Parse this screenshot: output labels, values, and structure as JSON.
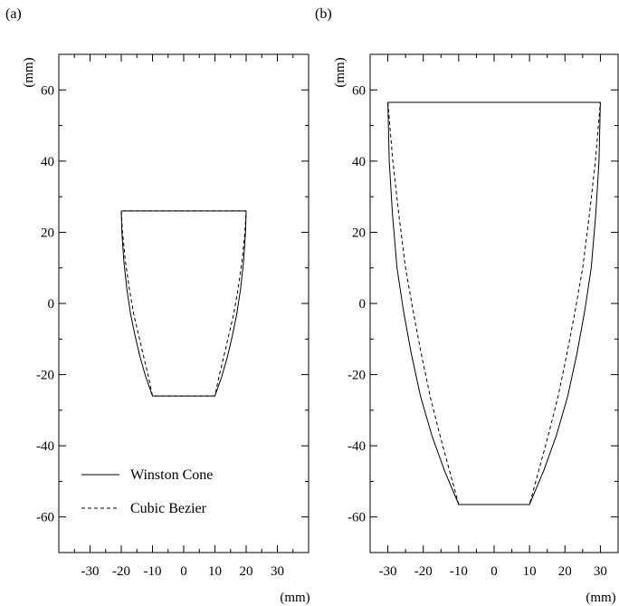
{
  "chart_data": [
    {
      "panel_label": "(a)",
      "type": "line",
      "xlabel": "(mm)",
      "ylabel": "(mm)",
      "xlim": [
        -40,
        40
      ],
      "ylim": [
        -70,
        70
      ],
      "xticks": [
        -30,
        -20,
        -10,
        0,
        10,
        20,
        30
      ],
      "yticks": [
        -60,
        -40,
        -20,
        0,
        20,
        40,
        60
      ],
      "grid": false,
      "legend_position": "bottom-left",
      "series": [
        {
          "name": "Winston Cone",
          "style": "solid",
          "x": [
            -20.0,
            -19.8,
            -19.2,
            -18.2,
            -17.0,
            -15.6,
            -14.0,
            -12.2,
            -10.0,
            10.0,
            12.2,
            14.0,
            15.6,
            17.0,
            18.2,
            19.2,
            19.8,
            20.0,
            -20.0
          ],
          "y": [
            26.0,
            20.0,
            12.0,
            4.0,
            -3.0,
            -9.0,
            -15.0,
            -20.5,
            -26.0,
            -26.0,
            -20.5,
            -15.0,
            -9.0,
            -3.0,
            4.0,
            12.0,
            20.0,
            26.0,
            26.0
          ]
        },
        {
          "name": "Cubic Bezier",
          "style": "dashed",
          "x": [
            -20.0,
            -19.6,
            -18.7,
            -17.4,
            -16.0,
            -14.4,
            -12.8,
            -11.3,
            -10.0,
            10.0,
            11.3,
            12.8,
            14.4,
            16.0,
            17.4,
            18.7,
            19.6,
            20.0,
            -20.0
          ],
          "y": [
            26.0,
            20.0,
            12.0,
            4.0,
            -3.0,
            -9.0,
            -15.0,
            -20.5,
            -26.0,
            -26.0,
            -20.5,
            -15.0,
            -9.0,
            -3.0,
            4.0,
            12.0,
            20.0,
            26.0,
            26.0
          ]
        }
      ]
    },
    {
      "panel_label": "(b)",
      "type": "line",
      "xlabel": "(mm)",
      "ylabel": "(mm)",
      "xlim": [
        -35,
        35
      ],
      "ylim": [
        -70,
        70
      ],
      "xticks": [
        -30,
        -20,
        -10,
        0,
        10,
        20,
        30
      ],
      "yticks": [
        -60,
        -40,
        -20,
        0,
        20,
        40,
        60
      ],
      "grid": false,
      "series": [
        {
          "name": "Winston Cone",
          "style": "solid",
          "x": [
            -30.0,
            -29.6,
            -28.7,
            -27.4,
            -25.6,
            -23.4,
            -20.8,
            -17.6,
            -14.0,
            -10.0,
            10.0,
            14.0,
            17.6,
            20.8,
            23.4,
            25.6,
            27.4,
            28.7,
            29.6,
            30.0,
            -30.0
          ],
          "y": [
            56.5,
            40.0,
            25.0,
            10.0,
            -2.0,
            -14.0,
            -26.0,
            -37.0,
            -47.0,
            -56.5,
            -56.5,
            -47.0,
            -37.0,
            -26.0,
            -14.0,
            -2.0,
            10.0,
            25.0,
            40.0,
            56.5,
            56.5
          ]
        },
        {
          "name": "Cubic Bezier",
          "style": "dashed",
          "x": [
            -30.0,
            -28.6,
            -26.9,
            -25.0,
            -22.9,
            -20.6,
            -18.1,
            -15.3,
            -12.6,
            -10.0,
            10.0,
            12.6,
            15.3,
            18.1,
            20.6,
            22.9,
            25.0,
            26.9,
            28.6,
            30.0,
            -30.0
          ],
          "y": [
            56.5,
            40.0,
            25.0,
            10.0,
            -2.0,
            -14.0,
            -26.0,
            -37.0,
            -47.0,
            -56.5,
            -56.5,
            -47.0,
            -37.0,
            -26.0,
            -14.0,
            -2.0,
            10.0,
            25.0,
            40.0,
            56.5,
            56.5
          ]
        }
      ]
    }
  ]
}
